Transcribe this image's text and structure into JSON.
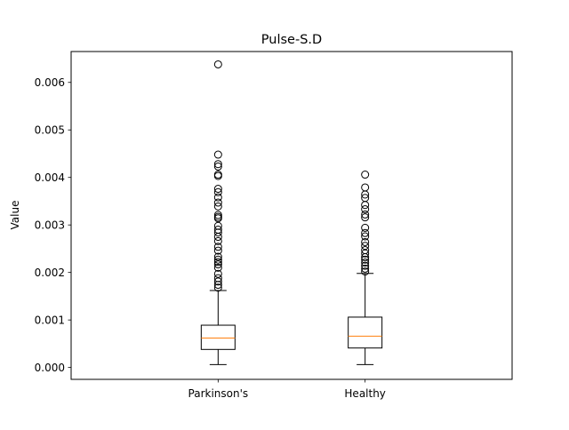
{
  "chart_data": {
    "type": "boxplot",
    "title": "Pulse-S.D",
    "xlabel": "",
    "ylabel": "Value",
    "ylim": [
      -0.00025,
      0.00665
    ],
    "yticks": [
      0.0,
      0.001,
      0.002,
      0.003,
      0.004,
      0.005,
      0.006
    ],
    "ytick_labels": [
      "0.000",
      "0.001",
      "0.002",
      "0.003",
      "0.004",
      "0.005",
      "0.006"
    ],
    "grid": false,
    "categories": [
      "Parkinson's",
      "Healthy"
    ],
    "series": [
      {
        "whisker_low": 6e-05,
        "q1": 0.00038,
        "median": 0.00062,
        "q3": 0.00089,
        "whisker_high": 0.00162,
        "outliers": [
          0.00638,
          0.00448,
          0.00428,
          0.00423,
          0.00406,
          0.00403,
          0.00376,
          0.00369,
          0.00358,
          0.00347,
          0.00339,
          0.00321,
          0.00317,
          0.00314,
          0.00298,
          0.0029,
          0.00284,
          0.00275,
          0.00266,
          0.00254,
          0.00246,
          0.00233,
          0.00227,
          0.00222,
          0.00217,
          0.0021,
          0.00197,
          0.00188,
          0.00181,
          0.00174,
          0.00168
        ]
      },
      {
        "whisker_low": 6e-05,
        "q1": 0.00041,
        "median": 0.00066,
        "q3": 0.00106,
        "whisker_high": 0.00198,
        "outliers": [
          0.00406,
          0.00379,
          0.00364,
          0.00357,
          0.00342,
          0.00333,
          0.00322,
          0.00316,
          0.00294,
          0.00283,
          0.00276,
          0.00264,
          0.00256,
          0.00247,
          0.0024,
          0.00232,
          0.00227,
          0.00221,
          0.00214,
          0.00208,
          0.00202
        ]
      }
    ],
    "colors": {
      "box": "#000000",
      "median": "#ff7f0e",
      "outlier_edge": "#000000",
      "background": "#ffffff"
    }
  }
}
